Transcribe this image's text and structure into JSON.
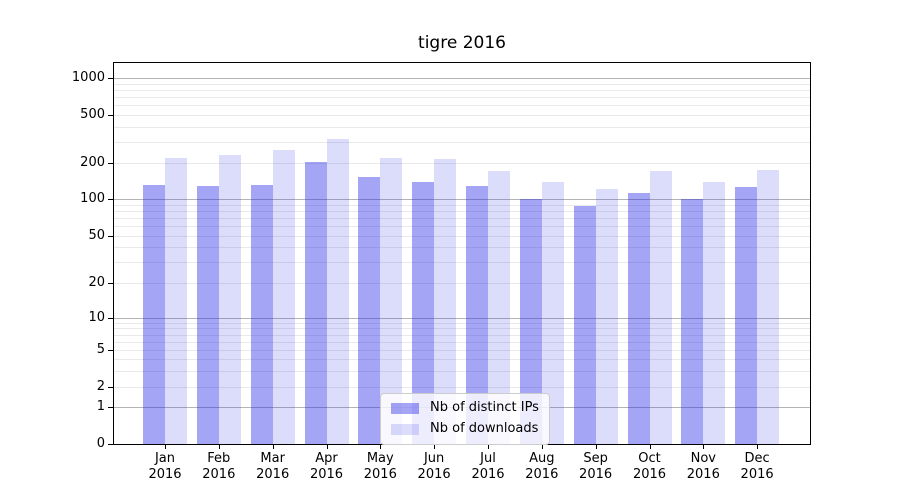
{
  "chart_data": {
    "type": "bar",
    "title": "tigre 2016",
    "yscale": "symlog",
    "grid": true,
    "xlabel": "",
    "ylabel": "",
    "year": "2016",
    "categories": [
      "Jan",
      "Feb",
      "Mar",
      "Apr",
      "May",
      "Jun",
      "Jul",
      "Aug",
      "Sep",
      "Oct",
      "Nov",
      "Dec"
    ],
    "series": [
      {
        "name": "Nb of distinct IPs",
        "color": "rgba(40,40,230,0.42)",
        "values": [
          131,
          129,
          131,
          206,
          152,
          139,
          129,
          100,
          88,
          113,
          100,
          126
        ]
      },
      {
        "name": "Nb of downloads",
        "color": "rgba(40,40,230,0.16)",
        "values": [
          219,
          233,
          256,
          316,
          219,
          216,
          172,
          139,
          121,
          171,
          139,
          176
        ]
      }
    ],
    "y_ticks": [
      0,
      1,
      2,
      5,
      10,
      20,
      50,
      100,
      200,
      500,
      1000
    ],
    "ylim": [
      0,
      1400
    ],
    "legend_position": "lower center",
    "colors": {
      "grid_major": "#b4b4b4",
      "grid_minor": "#e9e9e9",
      "axis": "#000000",
      "text": "#000000",
      "legend_border": "#cccccc",
      "legend_bg": "rgba(255,255,255,0.8)"
    }
  }
}
